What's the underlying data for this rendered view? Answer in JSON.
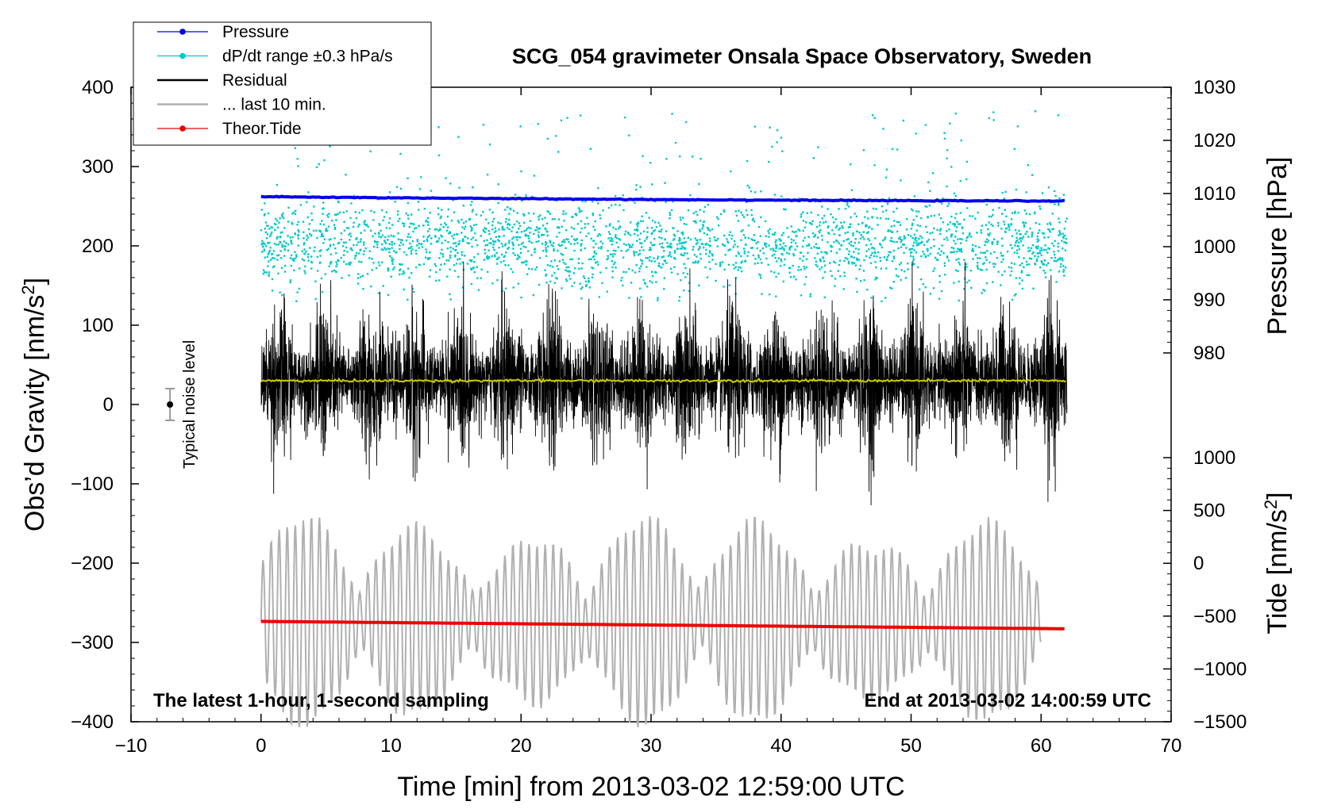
{
  "chart_data": {
    "type": "line",
    "title": "SCG_054 gravimeter Onsala Space Observatory, Sweden",
    "xlabel": "Time [min] from 2013-03-02 12:59:00 UTC",
    "ylabel_left": "Obs’d Gravity [nm/s²]",
    "ylabel_left_parts": {
      "main": "Obs’d Gravity [nm/s",
      "sup": "2",
      "end": "]"
    },
    "ylabel_right_top": "Pressure [hPa]",
    "ylabel_right_bottom": "Tide [nm/s²]",
    "ylabel_right_bottom_parts": {
      "main": "Tide [nm/s",
      "sup": "2",
      "end": "]"
    },
    "xlim": [
      -10,
      70
    ],
    "ylim_left": [
      -400,
      400
    ],
    "pressure_axis_range": [
      980,
      1030
    ],
    "tide_axis_range": [
      -1500,
      1000
    ],
    "x_ticks": [
      "−10",
      "0",
      "10",
      "20",
      "30",
      "40",
      "50",
      "60",
      "70"
    ],
    "x_tick_values": [
      -10,
      0,
      10,
      20,
      30,
      40,
      50,
      60,
      70
    ],
    "y_left_ticks": [
      "400",
      "300",
      "200",
      "100",
      "0",
      "−100",
      "−200",
      "−300",
      "−400"
    ],
    "y_left_tick_values": [
      400,
      300,
      200,
      100,
      0,
      -100,
      -200,
      -300,
      -400
    ],
    "pressure_ticks": [
      "1030",
      "1020",
      "1010",
      "1000",
      "990",
      "980"
    ],
    "pressure_tick_values": [
      1030,
      1020,
      1010,
      1000,
      990,
      980
    ],
    "tide_ticks": [
      "1000",
      "500",
      "0",
      "−500",
      "−1000",
      "−1500"
    ],
    "tide_tick_values": [
      1000,
      500,
      0,
      -500,
      -1000,
      -1500
    ],
    "legend": {
      "position": "top-left",
      "entries": [
        {
          "label": "Pressure",
          "color": "#0000ee",
          "marker": "dot"
        },
        {
          "label": "dP/dt range ±0.3 hPa/s",
          "color": "#00c8c8",
          "marker": "dot"
        },
        {
          "label": "Residual",
          "color": "#000000",
          "marker": "line"
        },
        {
          "label": "... last 10 min.",
          "color": "#b0b0b0",
          "marker": "line"
        },
        {
          "label": "Theor.Tide",
          "color": "#ee0000",
          "marker": "dot"
        }
      ]
    },
    "annotations": {
      "bottom_left": "The latest 1-hour, 1-second sampling",
      "bottom_right": "End at 2013-03-02 14:00:59 UTC",
      "noise_label": "Typical noise level"
    },
    "noise_level": {
      "x": -7,
      "y": 0,
      "half_range": 20
    },
    "series": [
      {
        "name": "Pressure",
        "axis": "pressure",
        "color": "#0000ee",
        "x_range": [
          0,
          62
        ],
        "start": 1009.4,
        "end": 1008.6,
        "description": "slowly decreasing"
      },
      {
        "name": "dP/dt range ±0.3 hPa/s",
        "axis": "left",
        "color": "#00c8c8",
        "x_range": [
          0,
          62
        ],
        "center": 200,
        "spread": 60,
        "max_outlier": 370,
        "min_outlier": 130
      },
      {
        "name": "Residual",
        "axis": "left",
        "color": "#000000",
        "x_range": [
          0,
          62
        ],
        "center": 30,
        "typical_amplitude": 60,
        "max": 180,
        "min": -130
      },
      {
        "name": "Residual mean",
        "axis": "left",
        "color": "#cccc00",
        "x_range": [
          0,
          62
        ],
        "value": 30
      },
      {
        "name": "... last 10 min.",
        "axis": "tide",
        "color": "#b0b0b0",
        "x_range": [
          0,
          60
        ],
        "center": -550,
        "max_amplitude": 1000
      },
      {
        "name": "Theor.Tide",
        "axis": "tide",
        "color": "#ee0000",
        "x_range": [
          0,
          62
        ],
        "start": -550,
        "end": -620
      }
    ]
  }
}
